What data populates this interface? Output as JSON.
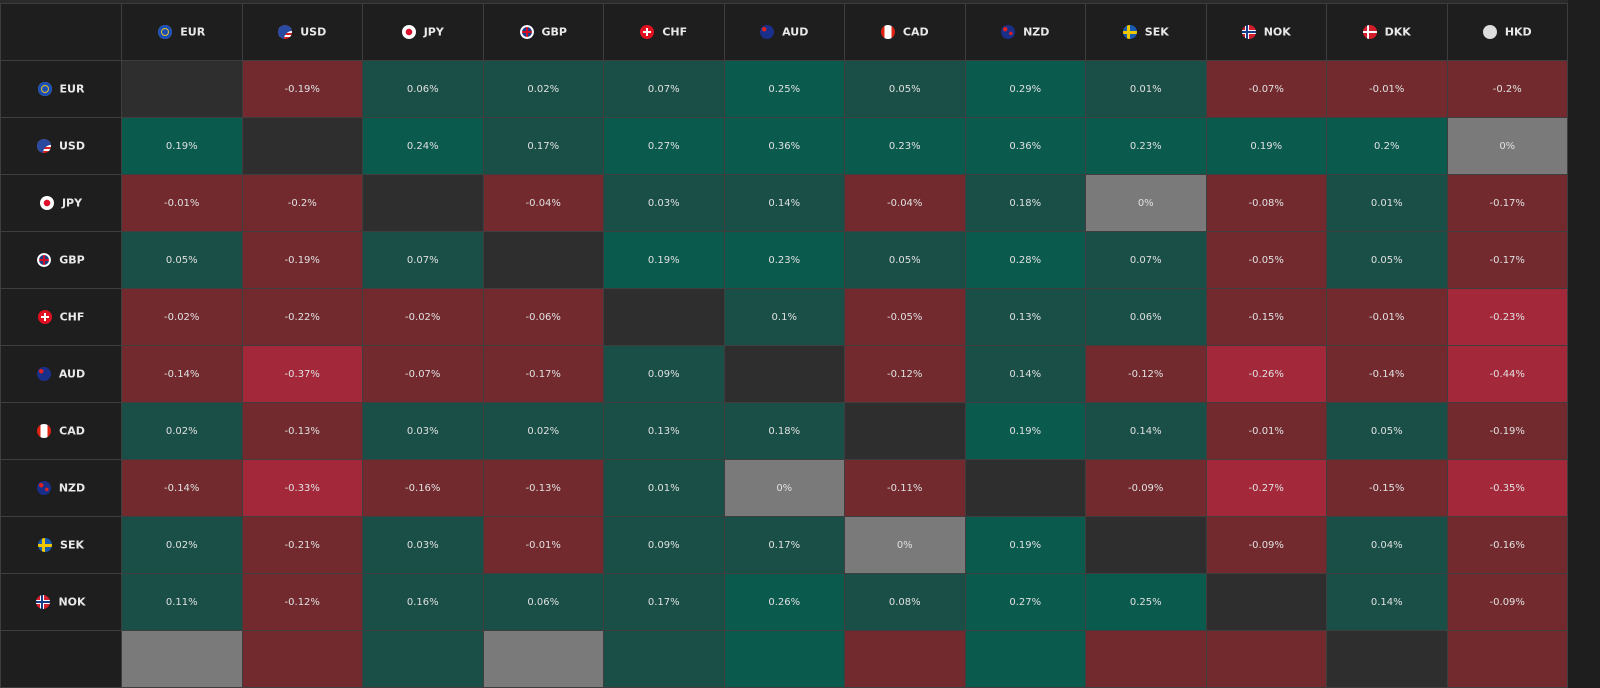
{
  "currencies": [
    "EUR",
    "USD",
    "JPY",
    "GBP",
    "CHF",
    "AUD",
    "CAD",
    "NZD",
    "SEK",
    "NOK",
    "DKK",
    "HKD"
  ],
  "flag_icons": {
    "EUR": "eu-flag-icon",
    "USD": "us-flag-icon",
    "JPY": "jp-flag-icon",
    "GBP": "gb-flag-icon",
    "CHF": "ch-flag-icon",
    "AUD": "au-flag-icon",
    "CAD": "ca-flag-icon",
    "NZD": "nz-flag-icon",
    "SEK": "se-flag-icon",
    "NOK": "no-flag-icon",
    "DKK": "dk-flag-icon",
    "HKD": "hk-flag-icon"
  },
  "colors": {
    "up": "#194f47",
    "up_strong": "#0b5a4e",
    "down": "#722a2f",
    "down_strong": "#a3283a",
    "neutral": "#7a7a7a",
    "self": "#2e2e2e"
  },
  "rows": [
    {
      "currency": "EUR",
      "values": [
        null,
        "-0.19%",
        "0.06%",
        "0.02%",
        "0.07%",
        "0.25%",
        "0.05%",
        "0.29%",
        "0.01%",
        "-0.07%",
        "-0.01%",
        "-0.2%"
      ]
    },
    {
      "currency": "USD",
      "values": [
        "0.19%",
        null,
        "0.24%",
        "0.17%",
        "0.27%",
        "0.36%",
        "0.23%",
        "0.36%",
        "0.23%",
        "0.19%",
        "0.2%",
        "0%"
      ]
    },
    {
      "currency": "JPY",
      "values": [
        "-0.01%",
        "-0.2%",
        null,
        "-0.04%",
        "0.03%",
        "0.14%",
        "-0.04%",
        "0.18%",
        "0%",
        "-0.08%",
        "0.01%",
        "-0.17%"
      ]
    },
    {
      "currency": "GBP",
      "values": [
        "0.05%",
        "-0.19%",
        "0.07%",
        null,
        "0.19%",
        "0.23%",
        "0.05%",
        "0.28%",
        "0.07%",
        "-0.05%",
        "0.05%",
        "-0.17%"
      ]
    },
    {
      "currency": "CHF",
      "values": [
        "-0.02%",
        "-0.22%",
        "-0.02%",
        "-0.06%",
        null,
        "0.1%",
        "-0.05%",
        "0.13%",
        "0.06%",
        "-0.15%",
        "-0.01%",
        "-0.23%"
      ]
    },
    {
      "currency": "AUD",
      "values": [
        "-0.14%",
        "-0.37%",
        "-0.07%",
        "-0.17%",
        "0.09%",
        null,
        "-0.12%",
        "0.14%",
        "-0.12%",
        "-0.26%",
        "-0.14%",
        "-0.44%"
      ]
    },
    {
      "currency": "CAD",
      "values": [
        "0.02%",
        "-0.13%",
        "0.03%",
        "0.02%",
        "0.13%",
        "0.18%",
        null,
        "0.19%",
        "0.14%",
        "-0.01%",
        "0.05%",
        "-0.19%"
      ]
    },
    {
      "currency": "NZD",
      "values": [
        "-0.14%",
        "-0.33%",
        "-0.16%",
        "-0.13%",
        "0.01%",
        "0%",
        "-0.11%",
        null,
        "-0.09%",
        "-0.27%",
        "-0.15%",
        "-0.35%"
      ]
    },
    {
      "currency": "SEK",
      "values": [
        "0.02%",
        "-0.21%",
        "0.03%",
        "-0.01%",
        "0.09%",
        "0.17%",
        "0%",
        "0.19%",
        null,
        "-0.09%",
        "0.04%",
        "-0.16%"
      ]
    },
    {
      "currency": "NOK",
      "values": [
        "0.11%",
        "-0.12%",
        "0.16%",
        "0.06%",
        "0.17%",
        "0.26%",
        "0.08%",
        "0.27%",
        "0.25%",
        null,
        "0.14%",
        "-0.09%"
      ]
    }
  ]
}
